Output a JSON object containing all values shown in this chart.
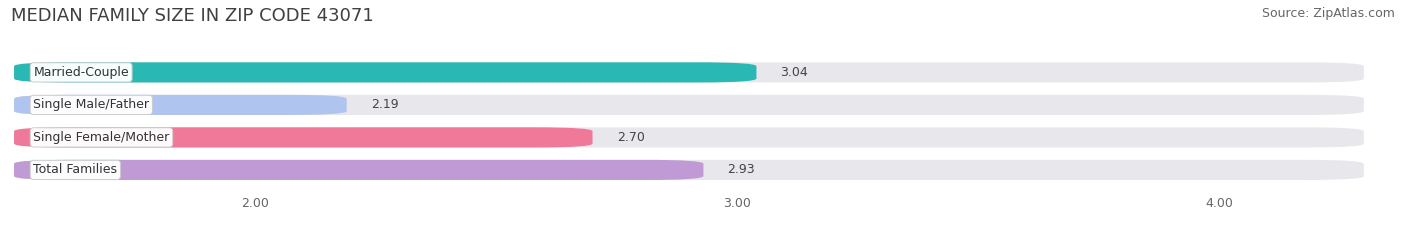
{
  "title": "MEDIAN FAMILY SIZE IN ZIP CODE 43071",
  "source": "Source: ZipAtlas.com",
  "categories": [
    "Married-Couple",
    "Single Male/Father",
    "Single Female/Mother",
    "Total Families"
  ],
  "values": [
    3.04,
    2.19,
    2.7,
    2.93
  ],
  "bar_colors": [
    "#29b8b4",
    "#b0c4f0",
    "#f07898",
    "#c09ad4"
  ],
  "background_color": "#ffffff",
  "bar_track_color": "#e8e8ec",
  "xmin": 1.5,
  "xmax": 4.3,
  "xlim_display_min": 1.5,
  "xticks": [
    2.0,
    3.0,
    4.0
  ],
  "xtick_labels": [
    "2.00",
    "3.00",
    "4.00"
  ],
  "title_fontsize": 13,
  "source_fontsize": 9,
  "label_fontsize": 9,
  "value_fontsize": 9,
  "bar_height": 0.62,
  "figsize": [
    14.06,
    2.33
  ],
  "dpi": 100
}
